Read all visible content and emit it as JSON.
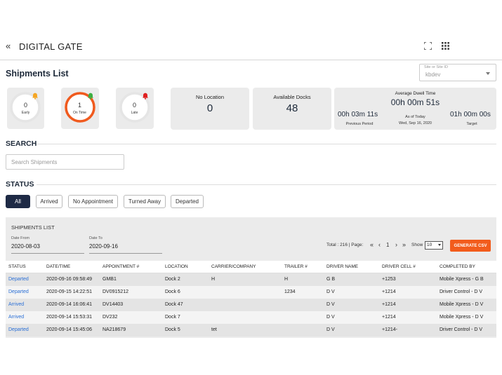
{
  "header": {
    "back_icon": "double-chevron-left-icon",
    "back_glyph": "«",
    "title": "DIGITAL GATE",
    "expand_icon": "fullscreen-icon",
    "apps_icon": "grid-icon"
  },
  "page": {
    "title": "Shipments List"
  },
  "site_select": {
    "label": "Site or Site ID",
    "value": "kbdev"
  },
  "summary": {
    "early": {
      "count": "0",
      "label": "Early",
      "bell_color": "#f5a623",
      "ring_color": "#e5e5e5"
    },
    "on_time": {
      "count": "1",
      "label": "On Time",
      "bell_color": "#3cb043",
      "ring_color": "#f05a1e"
    },
    "late": {
      "count": "0",
      "label": "Late",
      "bell_color": "#e02020",
      "ring_color": "#e5e5e5"
    },
    "no_location": {
      "title": "No Location",
      "value": "0"
    },
    "available_docks": {
      "title": "Available Docks",
      "value": "48"
    },
    "dwell": {
      "title": "Average Dwell Time",
      "current": "00h 00m 51s",
      "previous_value": "00h 03m 11s",
      "previous_label": "Previous Period",
      "as_of_label": "As of Today",
      "as_of_date": "Wed, Sep 16, 2020",
      "target_value": "01h 00m 00s",
      "target_label": "Target"
    }
  },
  "search": {
    "heading": "SEARCH",
    "placeholder": "Search Shipments"
  },
  "status": {
    "heading": "STATUS",
    "filters": [
      "All",
      "Arrived",
      "No Appointment",
      "Turned Away",
      "Departed"
    ],
    "active": "All"
  },
  "shipments_list": {
    "title": "SHIPMENTS LIST",
    "date_from_label": "Date From",
    "date_from": "2020-08-03",
    "date_to_label": "Date To",
    "date_to": "2020-09-16",
    "total_text": "Total : 216 | Page:",
    "page_first": "«",
    "page_prev": "‹",
    "page_current": "1",
    "page_next": "›",
    "page_last": "»",
    "show_label": "Show",
    "show_value": "10",
    "csv_label": "GENERATE CSV",
    "columns": [
      "STATUS",
      "DATE/TIME",
      "APPOINTMENT #",
      "LOCATION",
      "CARRIER/COMPANY",
      "TRAILER #",
      "DRIVER NAME",
      "DRIVER CELL #",
      "COMPLETED BY"
    ],
    "rows": [
      [
        "Departed",
        "2020-09-16 09:58:49",
        "GMB1",
        "Dock 2",
        "H",
        "H",
        "G B",
        "+1253",
        "Mobile Xpress - G B"
      ],
      [
        "Departed",
        "2020-09-15 14:22:51",
        "DV0915212",
        "Dock 6",
        "",
        "1234",
        "D V",
        "+1214",
        "Driver Control - D V"
      ],
      [
        "Arrived",
        "2020-09-14 16:06:41",
        "DV14403",
        "Dock 47",
        "",
        "",
        "D V",
        "+1214",
        "Mobile Xpress - D V"
      ],
      [
        "Arrived",
        "2020-09-14 15:53:31",
        "DV232",
        "Dock 7",
        "",
        "",
        "D V",
        "+1214",
        "Mobile Xpress - D V"
      ],
      [
        "Departed",
        "2020-09-14 15:45:06",
        "NA218679",
        "Dock 5",
        "tet",
        "",
        "D V",
        "+1214-",
        "Driver Control - D V"
      ]
    ]
  }
}
